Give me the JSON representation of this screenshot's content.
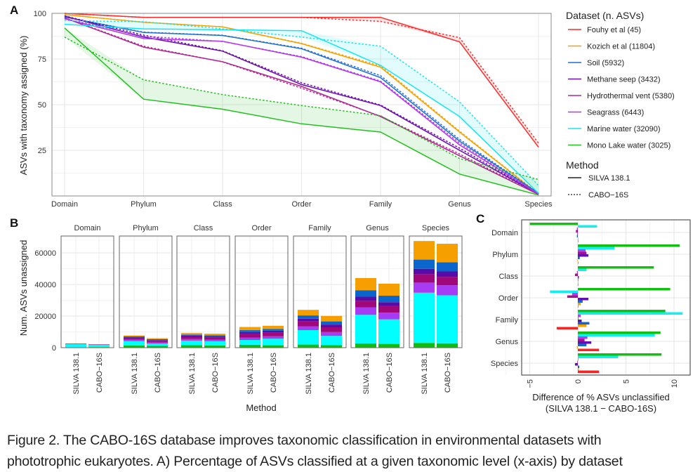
{
  "caption": {
    "line1": "Figure 2. The CABO-16S database improves taxonomic classification in environmental datasets with",
    "line2": "phototrophic eukaryotes. A) Percentage of ASVs classified at a given taxonomic level (x-axis) by dataset"
  },
  "chart_data": [
    {
      "panel": "A",
      "type": "line",
      "title": "",
      "xlabel": "",
      "ylabel": "ASVs with taxonomy assigned (%)",
      "categories": [
        "Domain",
        "Phylum",
        "Class",
        "Order",
        "Family",
        "Genus",
        "Species"
      ],
      "yticks": [
        25,
        50,
        75,
        100
      ],
      "ylim": [
        0,
        100
      ],
      "grid": true,
      "legend": {
        "placement": "right",
        "dataset_title": "Dataset (n. ASVs)",
        "method_title": "Method",
        "methods": [
          {
            "name": "SILVA 138.1",
            "dash": "solid"
          },
          {
            "name": "CABO−16S",
            "dash": "dotted"
          }
        ]
      },
      "series": [
        {
          "name": "Fouhy et al (45)",
          "color": "#ff2a2a",
          "silva": [
            100,
            97.8,
            97.8,
            97.8,
            97.8,
            84.4,
            26.7
          ],
          "cabo": [
            100,
            97.8,
            97.8,
            97.8,
            95.6,
            86.7,
            28.9
          ]
        },
        {
          "name": "Kozich et al (11804)",
          "color": "#f5a300",
          "silva": [
            99.3,
            95.1,
            92.6,
            83.4,
            70.5,
            35.0,
            1.0
          ],
          "cabo": [
            99.3,
            95.2,
            92.6,
            83.6,
            71.2,
            35.5,
            1.2
          ]
        },
        {
          "name": "Soil (5932)",
          "color": "#1f6fd0",
          "silva": [
            98.0,
            89.5,
            87.9,
            80.6,
            64.8,
            30.0,
            1.5
          ],
          "cabo": [
            98.0,
            89.7,
            88.0,
            80.9,
            65.9,
            31.0,
            1.6
          ]
        },
        {
          "name": "Methane seep (3432)",
          "color": "#6a0dad",
          "silva": [
            98.5,
            87.0,
            79.3,
            61.0,
            49.5,
            25.0,
            1.0
          ],
          "cabo": [
            98.6,
            88.1,
            79.5,
            62.0,
            49.8,
            26.2,
            1.2
          ]
        },
        {
          "name": "Hydrothermal vent (5380)",
          "color": "#b0288f",
          "silva": [
            97.5,
            81.5,
            73.5,
            60.0,
            43.5,
            22.0,
            0.8
          ],
          "cabo": [
            97.6,
            82.0,
            73.4,
            59.0,
            43.7,
            23.0,
            0.9
          ]
        },
        {
          "name": "Seagrass (6443)",
          "color": "#b034f0",
          "silva": [
            97.0,
            86.2,
            84.7,
            76.0,
            62.5,
            28.0,
            1.0
          ],
          "cabo": [
            97.1,
            87.5,
            84.6,
            76.3,
            62.9,
            29.0,
            1.1
          ]
        },
        {
          "name": "Marine water (32090)",
          "color": "#13e6f0",
          "silva": [
            94.0,
            91.5,
            91.0,
            90.5,
            71.5,
            43.5,
            1.5
          ],
          "cabo": [
            96.0,
            95.4,
            91.5,
            87.0,
            82.0,
            51.5,
            5.7
          ]
        },
        {
          "name": "Mono Lake water (3025)",
          "color": "#22c01e",
          "silva": [
            92.0,
            53.0,
            47.5,
            39.5,
            35.0,
            12.0,
            0.5
          ],
          "cabo": [
            87.0,
            63.6,
            55.5,
            49.5,
            44.0,
            20.5,
            9.0
          ]
        }
      ]
    },
    {
      "panel": "B",
      "type": "bar",
      "stacked": true,
      "title": "",
      "xlabel": "Method",
      "ylabel": "Num. ASVs unassigned",
      "yticks": [
        0,
        20000,
        40000,
        60000
      ],
      "ylim": [
        0,
        70000
      ],
      "grid": true,
      "facets": [
        "Domain",
        "Phylum",
        "Class",
        "Order",
        "Family",
        "Genus",
        "Species"
      ],
      "categories": [
        "SILVA 138.1",
        "CABO−16S"
      ],
      "stack_order_bottom_to_top": [
        "Mono Lake water",
        "Marine water",
        "Seagrass",
        "Hydrothermal vent",
        "Methane seep",
        "Soil",
        "Kozich et al",
        "Fouhy et al"
      ],
      "stack_colors": [
        "#0fbd0f",
        "#00ffff",
        "#a83cf5",
        "#a0087a",
        "#5a0aa8",
        "#0a66cc",
        "#f5a000",
        "#ff2020"
      ],
      "values": {
        "Domain": {
          "SILVA 138.1": [
            240,
            1930,
            190,
            130,
            50,
            120,
            80,
            0
          ],
          "CABO−16S": [
            390,
            1290,
            180,
            130,
            50,
            120,
            80,
            0
          ]
        },
        "Phylum": {
          "SILVA 138.1": [
            1420,
            2730,
            890,
            990,
            450,
            620,
            580,
            1
          ],
          "CABO−16S": [
            1100,
            1480,
            800,
            970,
            410,
            610,
            570,
            1
          ]
        },
        "Class": {
          "SILVA 138.1": [
            1590,
            2890,
            990,
            1430,
            710,
            720,
            870,
            1
          ],
          "CABO−16S": [
            1350,
            2730,
            990,
            1440,
            700,
            710,
            870,
            1
          ]
        },
        "Order": {
          "SILVA 138.1": [
            1830,
            3060,
            1550,
            2150,
            1340,
            1150,
            1960,
            1
          ],
          "CABO−16S": [
            1520,
            4170,
            1530,
            2210,
            1300,
            1130,
            1940,
            1
          ]
        },
        "Family": {
          "SILVA 138.1": [
            1970,
            9150,
            2420,
            3040,
            1730,
            2090,
            3480,
            1
          ],
          "CABO−16S": [
            1690,
            5780,
            2390,
            3030,
            1720,
            2020,
            3400,
            2
          ]
        },
        "Genus": {
          "SILVA 138.1": [
            2660,
            18130,
            4640,
            4200,
            2580,
            4150,
            7640,
            7
          ],
          "CABO−16S": [
            2400,
            15530,
            4190,
            4140,
            2530,
            4090,
            7580,
            6
          ]
        },
        "Species": {
          "SILVA 138.1": [
            3010,
            31770,
            6380,
            5340,
            3400,
            5840,
            11680,
            33
          ],
          "CABO−16S": [
            2750,
            30380,
            6370,
            5330,
            3390,
            5830,
            11660,
            32
          ]
        }
      }
    },
    {
      "panel": "C",
      "type": "bar",
      "orientation": "horizontal",
      "title": "",
      "xlabel": "Difference of % ASVs unclassified",
      "xlabel2": "(SILVA 138.1 − CABO-16S)",
      "ylabel": "",
      "xticks": [
        -5,
        0,
        5,
        10
      ],
      "xlim": [
        -6,
        11.5
      ],
      "grid": true,
      "categories": [
        "Domain",
        "Phylum",
        "Class",
        "Order",
        "Family",
        "Genus",
        "Species"
      ],
      "series_top_to_bottom": [
        {
          "name": "Mono Lake water",
          "color": "#11c011",
          "values": [
            -5.0,
            10.6,
            7.9,
            9.6,
            9.1,
            8.6,
            8.7
          ]
        },
        {
          "name": "Marine water",
          "color": "#10f0f0",
          "values": [
            2.0,
            3.8,
            0.9,
            -2.9,
            10.9,
            8.0,
            4.2
          ]
        },
        {
          "name": "Seagrass",
          "color": "#b040f5",
          "values": [
            -0.1,
            0.8,
            -0.1,
            -0.6,
            0.3,
            1.0,
            0.05
          ]
        },
        {
          "name": "Hydrothermal vent",
          "color": "#a8108a",
          "values": [
            -0.2,
            0.9,
            -0.3,
            -1.1,
            0.05,
            0.7,
            -0.05
          ]
        },
        {
          "name": "Methane seep",
          "color": "#6010b0",
          "values": [
            -0.05,
            1.1,
            0.1,
            1.1,
            0.4,
            1.4,
            -0.3
          ]
        },
        {
          "name": "Soil",
          "color": "#1565cc",
          "values": [
            -0.1,
            0.2,
            0.0,
            0.5,
            1.2,
            0.9,
            0.15
          ]
        },
        {
          "name": "Kozich et al",
          "color": "#f5a000",
          "values": [
            0.05,
            -0.05,
            0.0,
            0.3,
            0.9,
            -0.1,
            0.1
          ]
        },
        {
          "name": "Fouhy et al",
          "color": "#ff2020",
          "values": [
            0.0,
            0.0,
            0.0,
            0.0,
            -2.2,
            2.2,
            2.2
          ]
        }
      ]
    }
  ],
  "panel_labels": [
    "A",
    "B",
    "C"
  ]
}
